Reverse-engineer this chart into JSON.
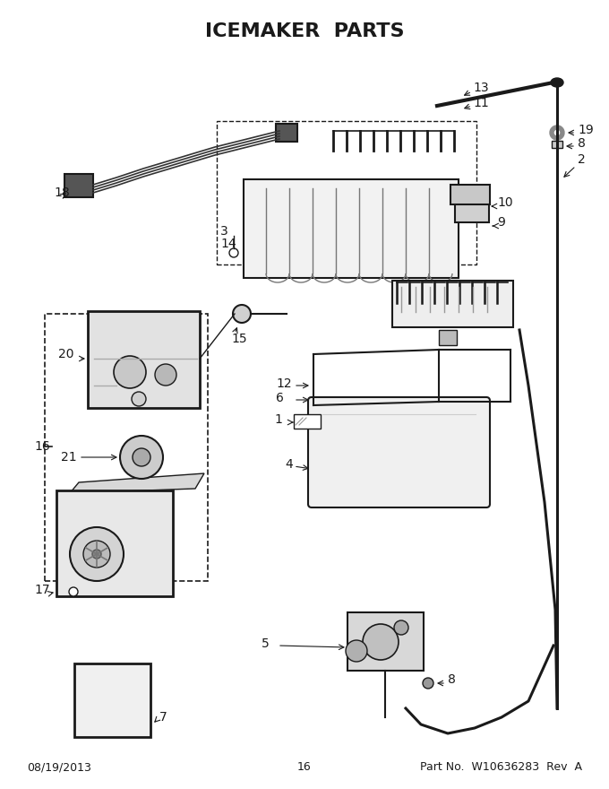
{
  "title": "ICEMAKER  PARTS",
  "title_fontsize": 16,
  "title_fontweight": "bold",
  "footer_left": "08/19/2013",
  "footer_center": "16",
  "footer_right": "Part No.  W10636283  Rev  A",
  "footer_fontsize": 9,
  "bg_color": "#ffffff",
  "line_color": "#1a1a1a",
  "label_fontsize": 10,
  "fig_width": 6.8,
  "fig_height": 8.8
}
